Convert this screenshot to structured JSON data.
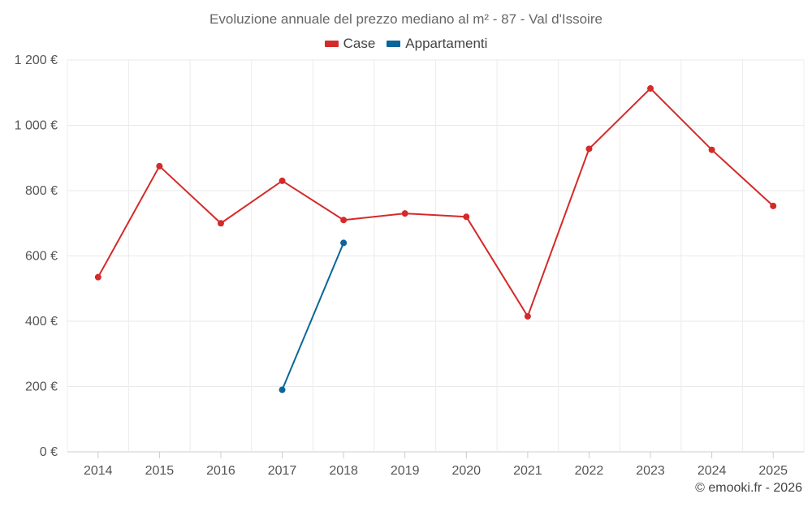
{
  "chart_data": {
    "type": "line",
    "title": "Evoluzione annuale del prezzo mediano al m² - 87 - Val d'Issoire",
    "categories": [
      "2014",
      "2015",
      "2016",
      "2017",
      "2018",
      "2019",
      "2020",
      "2021",
      "2022",
      "2023",
      "2024",
      "2025"
    ],
    "series": [
      {
        "name": "Case",
        "color": "#d42a2a",
        "values": [
          535,
          875,
          700,
          830,
          710,
          730,
          720,
          415,
          928,
          1113,
          925,
          753
        ]
      },
      {
        "name": "Appartamenti",
        "color": "#0b659b",
        "values": [
          null,
          null,
          null,
          190,
          640,
          null,
          null,
          null,
          null,
          null,
          null,
          null
        ]
      }
    ],
    "yticks": [
      "0 €",
      "200 €",
      "400 €",
      "600 €",
      "800 €",
      "1 000 €",
      "1 200 €"
    ],
    "ytick_values": [
      0,
      200,
      400,
      600,
      800,
      1000,
      1200
    ],
    "ylim": [
      0,
      1200
    ],
    "xlabel": "",
    "ylabel": "",
    "grid": true,
    "legend_position": "top-center"
  },
  "credits": "© emooki.fr - 2026"
}
